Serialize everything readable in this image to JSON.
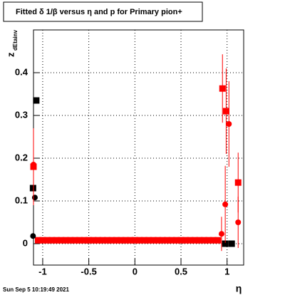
{
  "chart_data": {
    "type": "scatter",
    "title": "Fitted δ 1/β versus η and p for Primary pion+",
    "x_label": "η",
    "y_label": "z",
    "y_label_sub": "dEtainv",
    "timestamp": "Sun Sep  5 10:19:49 2021",
    "xlim": [
      -1.1,
      1.18
    ],
    "ylim": [
      -0.05,
      0.5
    ],
    "xticks": [
      -1,
      -0.5,
      0,
      0.5,
      1
    ],
    "yticks": [
      0,
      0.1,
      0.2,
      0.3,
      0.4
    ],
    "grid": true,
    "series": [
      {
        "color": "#ff0000",
        "marker": "square",
        "x": [
          -1.05,
          -1,
          -0.95,
          -0.9,
          -0.85,
          -0.8,
          -0.75,
          -0.7,
          -0.65,
          -0.6,
          -0.55,
          -0.5,
          -0.45,
          -0.4,
          -0.35,
          -0.3,
          -0.25,
          -0.2,
          -0.15,
          -0.1,
          -0.05,
          0,
          0.05,
          0.1,
          0.15,
          0.2,
          0.25,
          0.3,
          0.35,
          0.4,
          0.45,
          0.5,
          0.55,
          0.6,
          0.65,
          0.7,
          0.75,
          0.8,
          0.85,
          0.9
        ],
        "values": [
          0.008,
          0.008,
          0.008,
          0.008,
          0.008,
          0.008,
          0.008,
          0.008,
          0.008,
          0.008,
          0.008,
          0.008,
          0.008,
          0.008,
          0.008,
          0.008,
          0.008,
          0.008,
          0.008,
          0.008,
          0.008,
          0.008,
          0.008,
          0.008,
          0.008,
          0.008,
          0.008,
          0.008,
          0.008,
          0.008,
          0.008,
          0.008,
          0.008,
          0.008,
          0.008,
          0.008,
          0.008,
          0.008,
          0.008,
          0.008
        ]
      },
      {
        "color": "#000000",
        "marker": "square",
        "x": [
          -1.105,
          -1.07,
          0.98,
          1.05
        ],
        "values": [
          0.13,
          0.335,
          0.0,
          0.0
        ]
      },
      {
        "color": "#000000",
        "marker": "circle",
        "x": [
          -1.105,
          -1.085
        ],
        "values": [
          0.018,
          0.108
        ]
      },
      {
        "color": "#ff0000",
        "marker": "square",
        "x": [
          -1.1,
          0.95,
          0.99,
          1.12
        ],
        "values": [
          0.18,
          0.363,
          0.31,
          0.143
        ],
        "errors": [
          0.09,
          0.08,
          0.1,
          0.07
        ]
      },
      {
        "color": "#ff0000",
        "marker": "circle",
        "x": [
          -1.1,
          0.94,
          0.98,
          1.02,
          1.12
        ],
        "values": [
          0.185,
          0.023,
          0.092,
          0.28,
          0.05
        ],
        "errors": [
          0.08,
          0.04,
          0.09,
          0.1,
          0.06
        ]
      }
    ]
  }
}
